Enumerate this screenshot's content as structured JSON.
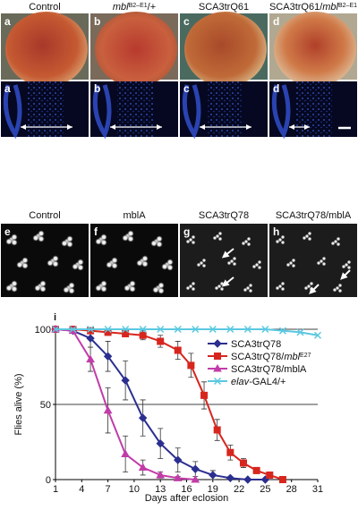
{
  "panels_top": [
    {
      "letter": "a",
      "label_parts": [
        {
          "text": "Control"
        }
      ]
    },
    {
      "letter": "b",
      "label_parts": [
        {
          "text": "mbl",
          "style": "italic"
        },
        {
          "text": "B2–E1",
          "style": "sup"
        },
        {
          "text": "/+"
        }
      ]
    },
    {
      "letter": "c",
      "label_parts": [
        {
          "text": "SCA3trQ61"
        }
      ]
    },
    {
      "letter": "d",
      "label_parts": [
        {
          "text": "SCA3trQ61/"
        },
        {
          "text": "mbl",
          "style": "italic"
        },
        {
          "text": "B2–E1",
          "style": "sup"
        }
      ]
    }
  ],
  "panels_mid": [
    {
      "letter": "e",
      "label": "Control"
    },
    {
      "letter": "f",
      "label": "mblA"
    },
    {
      "letter": "g",
      "label": "SCA3trQ78"
    },
    {
      "letter": "h",
      "label": "SCA3trQ78/mblA"
    }
  ],
  "chart_data": {
    "type": "line",
    "panel_label": "i",
    "x_label": "Days after eclosion",
    "y_label": "Flies alive (%)",
    "xlim": [
      1,
      31
    ],
    "ylim": [
      0,
      100
    ],
    "xticks": [
      1,
      4,
      7,
      10,
      13,
      16,
      19,
      22,
      25,
      28,
      31
    ],
    "yticks": [
      0,
      50,
      100
    ],
    "grid_y": [
      50,
      100
    ],
    "series": [
      {
        "name_parts": [
          {
            "text": "SCA3trQ78"
          }
        ],
        "color": "#2b2f8f",
        "marker": "diamond",
        "x": [
          1,
          3,
          5,
          7,
          9,
          11,
          13,
          15,
          17,
          19,
          21,
          23,
          25
        ],
        "values": [
          100,
          99,
          94,
          82,
          66,
          41,
          24,
          13,
          7,
          3,
          1,
          0,
          0
        ],
        "errors": [
          0,
          1,
          6,
          10,
          13,
          12,
          10,
          8,
          5,
          3,
          1,
          0,
          0
        ]
      },
      {
        "name_parts": [
          {
            "text": "SCA3trQ78/"
          },
          {
            "text": "mbl",
            "style": "italic"
          },
          {
            "text": "E27",
            "style": "sup"
          }
        ],
        "color": "#d7261e",
        "marker": "square",
        "x": [
          1,
          3,
          5,
          7,
          9,
          11,
          13,
          15,
          16.5,
          18,
          19.5,
          21,
          22.5,
          24,
          25.5,
          27
        ],
        "values": [
          100,
          100,
          99,
          98,
          97,
          96,
          92,
          86,
          76,
          56,
          33,
          18,
          11,
          6,
          3,
          0
        ],
        "errors": [
          0,
          0,
          1,
          2,
          2,
          3,
          4,
          6,
          8,
          9,
          7,
          5,
          3,
          2,
          1,
          0
        ]
      },
      {
        "name_parts": [
          {
            "text": "SCA3trQ78/mblA"
          }
        ],
        "color": "#c23ca8",
        "marker": "triangle",
        "x": [
          1,
          3,
          5,
          7,
          9,
          11,
          13,
          15,
          17
        ],
        "values": [
          100,
          99,
          80,
          46,
          17,
          8,
          3,
          1,
          0
        ],
        "errors": [
          0,
          1,
          8,
          15,
          12,
          5,
          2,
          1,
          0
        ]
      },
      {
        "name_parts": [
          {
            "text": "elav",
            "style": "italic"
          },
          {
            "text": "-GAL4/+"
          }
        ],
        "color": "#5bc8e0",
        "marker": "x",
        "x": [
          1,
          3,
          5,
          7,
          9,
          11,
          13,
          15,
          17,
          19,
          21,
          23,
          25,
          27,
          29,
          31
        ],
        "values": [
          100,
          100,
          100,
          100,
          100,
          100,
          100,
          100,
          100,
          100,
          100,
          100,
          100,
          99,
          98,
          96
        ]
      }
    ]
  }
}
